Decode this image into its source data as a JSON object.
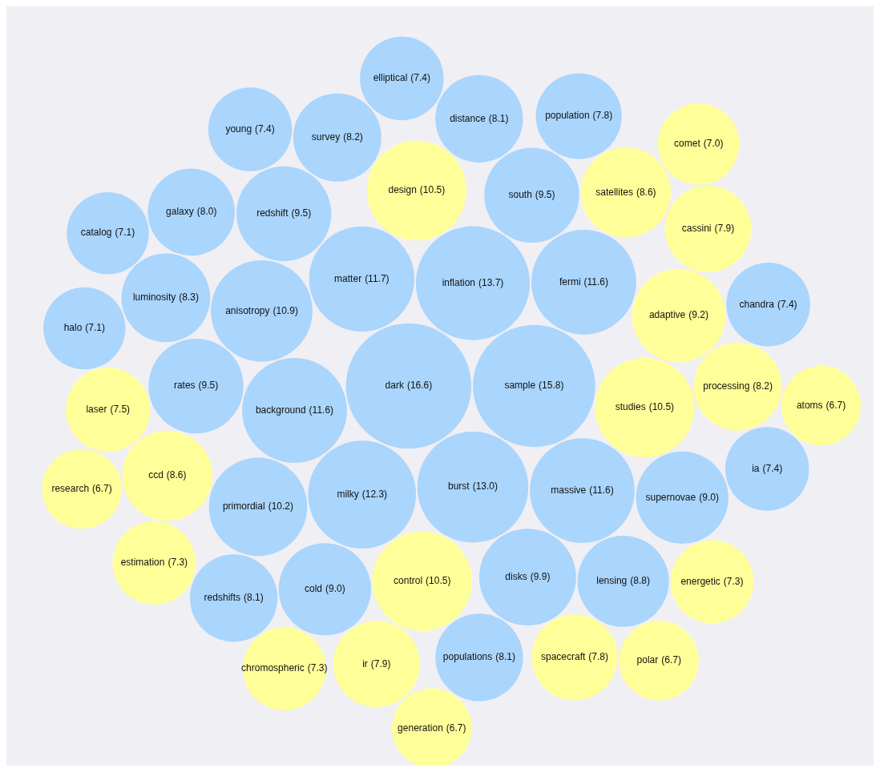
{
  "chart_data": {
    "type": "other",
    "categories": [
      "ir",
      "galaxy",
      "distance",
      "populations",
      "redshifts",
      "cassini",
      "primordial",
      "studies",
      "control",
      "survey",
      "spacecraft",
      "disks",
      "burst",
      "inflation",
      "design",
      "research",
      "processing",
      "population",
      "south",
      "anisotropy",
      "polar",
      "milky",
      "dark",
      "sample",
      "luminosity",
      "laser",
      "atoms",
      "rates",
      "background",
      "satellites",
      "ia",
      "matter",
      "massive",
      "fermi",
      "generation",
      "redshift",
      "ccd",
      "chandra",
      "adaptive",
      "lensing",
      "comet",
      "cold",
      "supernovae",
      "young",
      "halo",
      "elliptical",
      "estimation",
      "energetic",
      "chromospheric",
      "catalog"
    ],
    "values": [
      7.9,
      8.0,
      8.1,
      8.1,
      8.1,
      7.9,
      10.2,
      10.5,
      10.5,
      8.2,
      7.8,
      9.9,
      13.0,
      13.7,
      10.5,
      6.7,
      8.2,
      7.8,
      9.5,
      10.9,
      6.7,
      12.3,
      16.6,
      15.8,
      8.3,
      7.5,
      6.7,
      9.5,
      11.6,
      8.6,
      7.4,
      11.7,
      11.6,
      11.6,
      6.7,
      9.5,
      8.6,
      7.4,
      9.2,
      8.8,
      7.0,
      9.0,
      9.0,
      7.4,
      7.1,
      7.4,
      7.3,
      7.3,
      7.3,
      7.1
    ],
    "value_labels": [
      "(7.9)",
      "(8.0)",
      "(8.1)",
      "(8.1)",
      "(8.1)",
      "(7.9)",
      "(10.2)",
      "(10.5)",
      "(10.5)",
      "(8.2)",
      "(7.8)",
      "(9.9)",
      "(13.0)",
      "(13.7)",
      "(10.5)",
      "(6.7)",
      "(8.2)",
      "(7.8)",
      "(9.5)",
      "(10.9)",
      "(6.7)",
      "(12.3)",
      "(16.6)",
      "(15.8)",
      "(8.3)",
      "(7.5)",
      "(6.7)",
      "(9.5)",
      "(11.6)",
      "(8.6)",
      "(7.4)",
      "(11.7)",
      "(11.6)",
      "(11.6)",
      "(6.7)",
      "(9.5)",
      "(8.6)",
      "(7.4)",
      "(9.2)",
      "(8.8)",
      "(7.0)",
      "(9.0)",
      "(9.0)",
      "(7.4)",
      "(7.1)",
      "(7.4)",
      "(7.3)",
      "(7.3)",
      "(7.3)",
      "(7.1)"
    ],
    "colors": [
      "#ffff99",
      "#aad5fc",
      "#aad5fc",
      "#aad5fc",
      "#aad5fc",
      "#ffff99",
      "#aad5fc",
      "#ffff99",
      "#ffff99",
      "#aad5fc",
      "#ffff99",
      "#aad5fc",
      "#aad5fc",
      "#aad5fc",
      "#ffff99",
      "#ffff99",
      "#ffff99",
      "#aad5fc",
      "#aad5fc",
      "#aad5fc",
      "#ffff99",
      "#aad5fc",
      "#aad5fc",
      "#aad5fc",
      "#aad5fc",
      "#ffff99",
      "#ffff99",
      "#aad5fc",
      "#aad5fc",
      "#ffff99",
      "#aad5fc",
      "#aad5fc",
      "#aad5fc",
      "#aad5fc",
      "#ffff99",
      "#aad5fc",
      "#ffff99",
      "#aad5fc",
      "#ffff99",
      "#aad5fc",
      "#ffff99",
      "#aad5fc",
      "#aad5fc",
      "#aad5fc",
      "#aad5fc",
      "#aad5fc",
      "#ffff99",
      "#ffff99",
      "#ffff99",
      "#aad5fc"
    ]
  }
}
